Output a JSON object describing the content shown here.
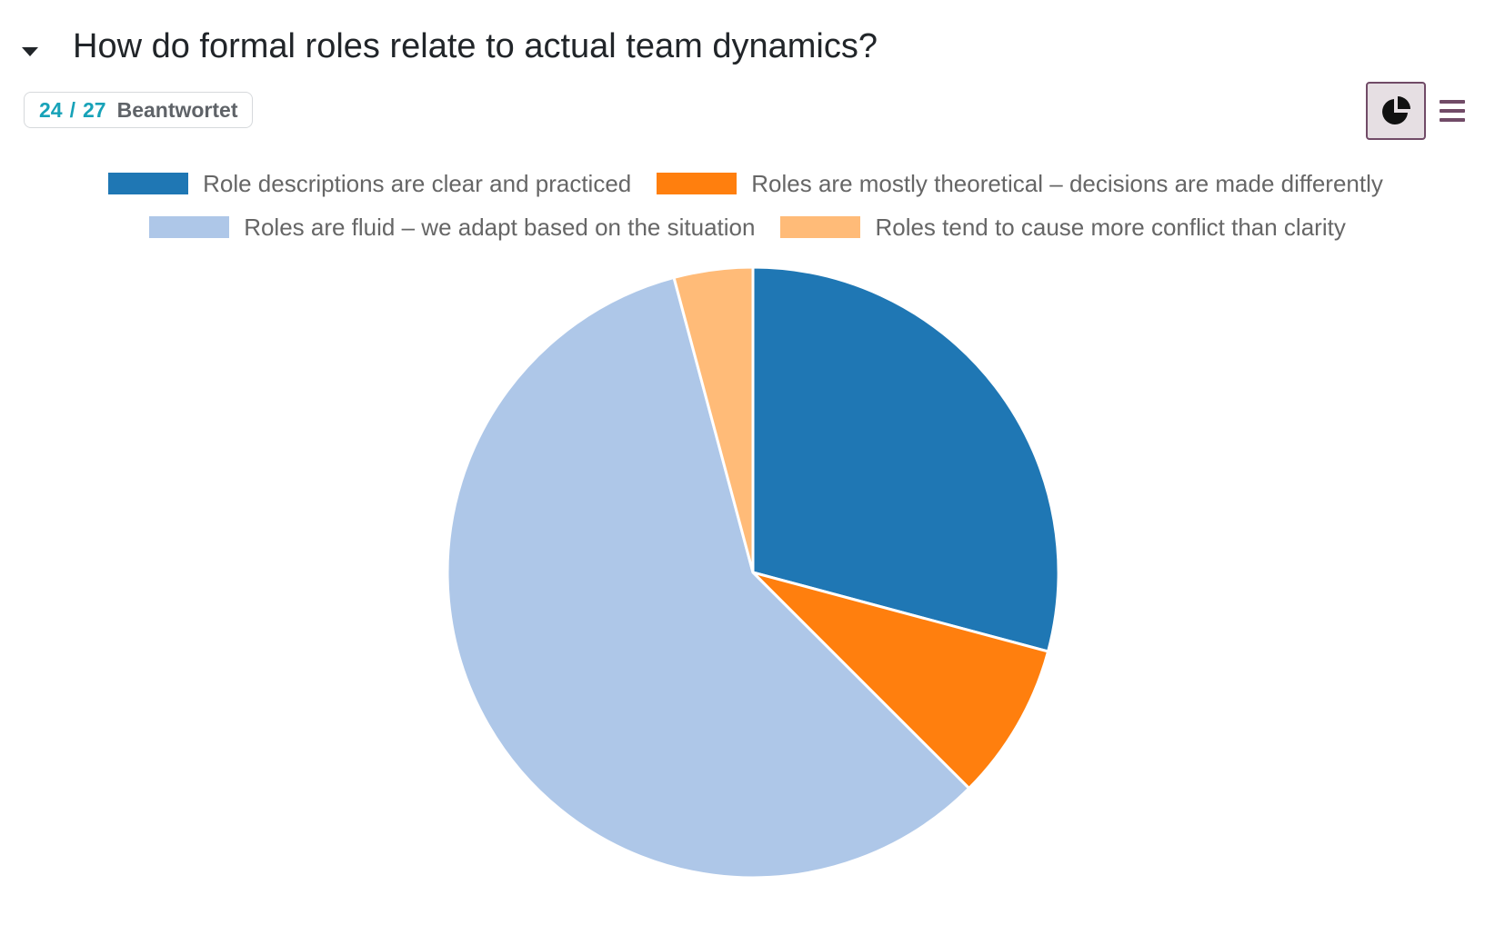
{
  "question": {
    "title": "How do formal roles relate to actual team dynamics?",
    "answered": "24",
    "separator": "/",
    "total": "27",
    "answered_label": "Beantwortet"
  },
  "view_toggle": {
    "pie_icon": "pie-chart-icon",
    "list_icon": "list-icon",
    "active": "pie"
  },
  "colors": {
    "accent": "#714b67",
    "badge_number": "#17a2b8"
  },
  "chart_data": {
    "type": "pie",
    "title": "",
    "start_angle": "12 o'clock",
    "direction": "clockwise",
    "legend_position": "top",
    "slices": [
      {
        "label": "Role descriptions are clear and practiced",
        "value": 7,
        "color": "#1f77b4"
      },
      {
        "label": "Roles are mostly theoretical – decisions are made differently",
        "value": 2,
        "color": "#ff7f0e"
      },
      {
        "label": "Roles are fluid – we adapt based on the situation",
        "value": 14,
        "color": "#aec7e8"
      },
      {
        "label": "Roles tend to cause more conflict than clarity",
        "value": 1,
        "color": "#ffbb78"
      }
    ]
  }
}
